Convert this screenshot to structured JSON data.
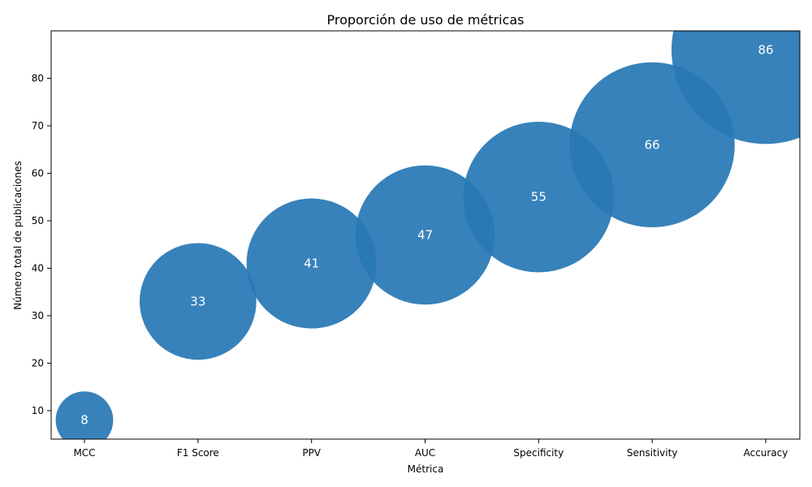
{
  "chart_data": {
    "type": "scatter",
    "title": "Proporción de uso de métricas",
    "xlabel": "Métrica",
    "ylabel": "Número total de publicaciones",
    "categories": [
      "MCC",
      "F1 Score",
      "PPV",
      "AUC",
      "Specificity",
      "Sensitivity",
      "Accuracy"
    ],
    "values": [
      8,
      33,
      41,
      47,
      55,
      66,
      86
    ],
    "ylim": [
      4,
      90
    ],
    "yticks": [
      10,
      20,
      30,
      40,
      50,
      60,
      70,
      80
    ],
    "grid": false,
    "bubble_color": "#2878b5",
    "label_color": "#ffffff"
  }
}
